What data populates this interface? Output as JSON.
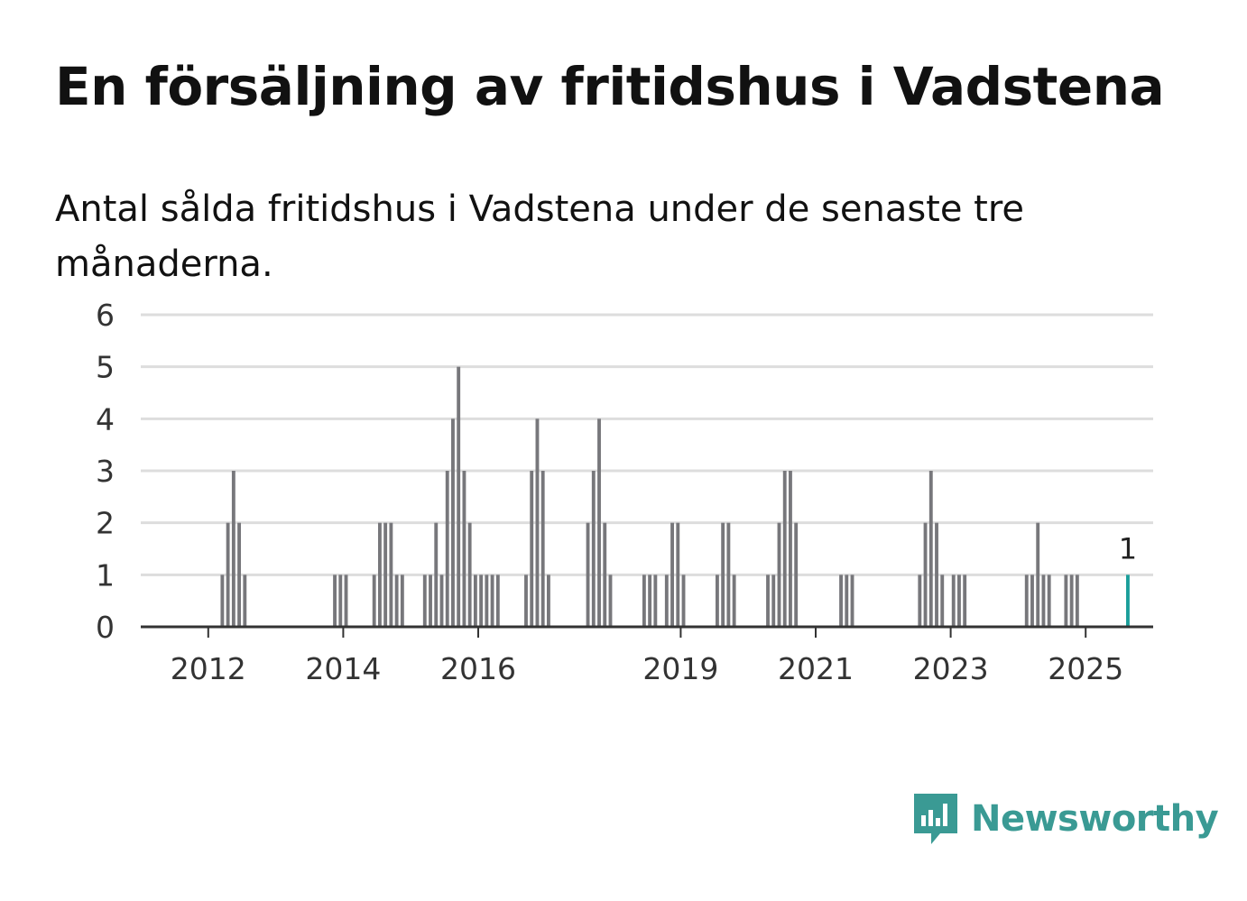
{
  "title": "En försäljning av fritidshus i Vadstena",
  "subtitle": "Antal sålda fritidshus i Vadstena under de senaste tre månaderna.",
  "brand": {
    "name": "Newsworthy",
    "color": "#3a9a94",
    "icon": "newsworthy-logo-icon"
  },
  "colors": {
    "bar": "#77777b",
    "highlight": "#1a9e9a",
    "grid": "#dddddd",
    "axis": "#333333"
  },
  "chart_data": {
    "type": "bar",
    "title": "En försäljning av fritidshus i Vadstena",
    "xlabel": "",
    "ylabel": "",
    "ylim": [
      0,
      6
    ],
    "yticks": [
      0,
      1,
      2,
      3,
      4,
      5,
      6
    ],
    "x_start": "2011-01",
    "x_end": "2025-12",
    "xticks": [
      "2012",
      "2014",
      "2016",
      "2019",
      "2021",
      "2023",
      "2025"
    ],
    "series": [
      {
        "name": "Sålda fritidshus",
        "color": "#77777b",
        "points": [
          {
            "x": "2012-03",
            "y": 1
          },
          {
            "x": "2012-04",
            "y": 2
          },
          {
            "x": "2012-05",
            "y": 3
          },
          {
            "x": "2012-06",
            "y": 2
          },
          {
            "x": "2012-07",
            "y": 1
          },
          {
            "x": "2013-11",
            "y": 1
          },
          {
            "x": "2013-12",
            "y": 1
          },
          {
            "x": "2014-01",
            "y": 1
          },
          {
            "x": "2014-06",
            "y": 1
          },
          {
            "x": "2014-07",
            "y": 2
          },
          {
            "x": "2014-08",
            "y": 2
          },
          {
            "x": "2014-09",
            "y": 2
          },
          {
            "x": "2014-10",
            "y": 1
          },
          {
            "x": "2014-11",
            "y": 1
          },
          {
            "x": "2015-03",
            "y": 1
          },
          {
            "x": "2015-04",
            "y": 1
          },
          {
            "x": "2015-05",
            "y": 2
          },
          {
            "x": "2015-06",
            "y": 1
          },
          {
            "x": "2015-07",
            "y": 3
          },
          {
            "x": "2015-08",
            "y": 4
          },
          {
            "x": "2015-09",
            "y": 5
          },
          {
            "x": "2015-10",
            "y": 3
          },
          {
            "x": "2015-11",
            "y": 2
          },
          {
            "x": "2015-12",
            "y": 1
          },
          {
            "x": "2016-01",
            "y": 1
          },
          {
            "x": "2016-02",
            "y": 1
          },
          {
            "x": "2016-03",
            "y": 1
          },
          {
            "x": "2016-04",
            "y": 1
          },
          {
            "x": "2016-09",
            "y": 1
          },
          {
            "x": "2016-10",
            "y": 3
          },
          {
            "x": "2016-11",
            "y": 4
          },
          {
            "x": "2016-12",
            "y": 3
          },
          {
            "x": "2017-01",
            "y": 1
          },
          {
            "x": "2017-08",
            "y": 2
          },
          {
            "x": "2017-09",
            "y": 3
          },
          {
            "x": "2017-10",
            "y": 4
          },
          {
            "x": "2017-11",
            "y": 2
          },
          {
            "x": "2017-12",
            "y": 1
          },
          {
            "x": "2018-06",
            "y": 1
          },
          {
            "x": "2018-07",
            "y": 1
          },
          {
            "x": "2018-08",
            "y": 1
          },
          {
            "x": "2018-10",
            "y": 1
          },
          {
            "x": "2018-11",
            "y": 2
          },
          {
            "x": "2018-12",
            "y": 2
          },
          {
            "x": "2019-01",
            "y": 1
          },
          {
            "x": "2019-07",
            "y": 1
          },
          {
            "x": "2019-08",
            "y": 2
          },
          {
            "x": "2019-09",
            "y": 2
          },
          {
            "x": "2019-10",
            "y": 1
          },
          {
            "x": "2020-04",
            "y": 1
          },
          {
            "x": "2020-05",
            "y": 1
          },
          {
            "x": "2020-06",
            "y": 2
          },
          {
            "x": "2020-07",
            "y": 3
          },
          {
            "x": "2020-08",
            "y": 3
          },
          {
            "x": "2020-09",
            "y": 2
          },
          {
            "x": "2021-05",
            "y": 1
          },
          {
            "x": "2021-06",
            "y": 1
          },
          {
            "x": "2021-07",
            "y": 1
          },
          {
            "x": "2022-07",
            "y": 1
          },
          {
            "x": "2022-08",
            "y": 2
          },
          {
            "x": "2022-09",
            "y": 3
          },
          {
            "x": "2022-10",
            "y": 2
          },
          {
            "x": "2022-11",
            "y": 1
          },
          {
            "x": "2023-01",
            "y": 1
          },
          {
            "x": "2023-02",
            "y": 1
          },
          {
            "x": "2023-03",
            "y": 1
          },
          {
            "x": "2024-02",
            "y": 1
          },
          {
            "x": "2024-03",
            "y": 1
          },
          {
            "x": "2024-04",
            "y": 2
          },
          {
            "x": "2024-05",
            "y": 1
          },
          {
            "x": "2024-06",
            "y": 1
          },
          {
            "x": "2024-09",
            "y": 1
          },
          {
            "x": "2024-10",
            "y": 1
          },
          {
            "x": "2024-11",
            "y": 1
          }
        ]
      },
      {
        "name": "Senaste tre månaderna",
        "color": "#1a9e9a",
        "points": [
          {
            "x": "2025-08",
            "y": 1
          }
        ]
      }
    ],
    "annotations": [
      {
        "x": "2025-08",
        "y": 1,
        "text": "1"
      }
    ]
  }
}
